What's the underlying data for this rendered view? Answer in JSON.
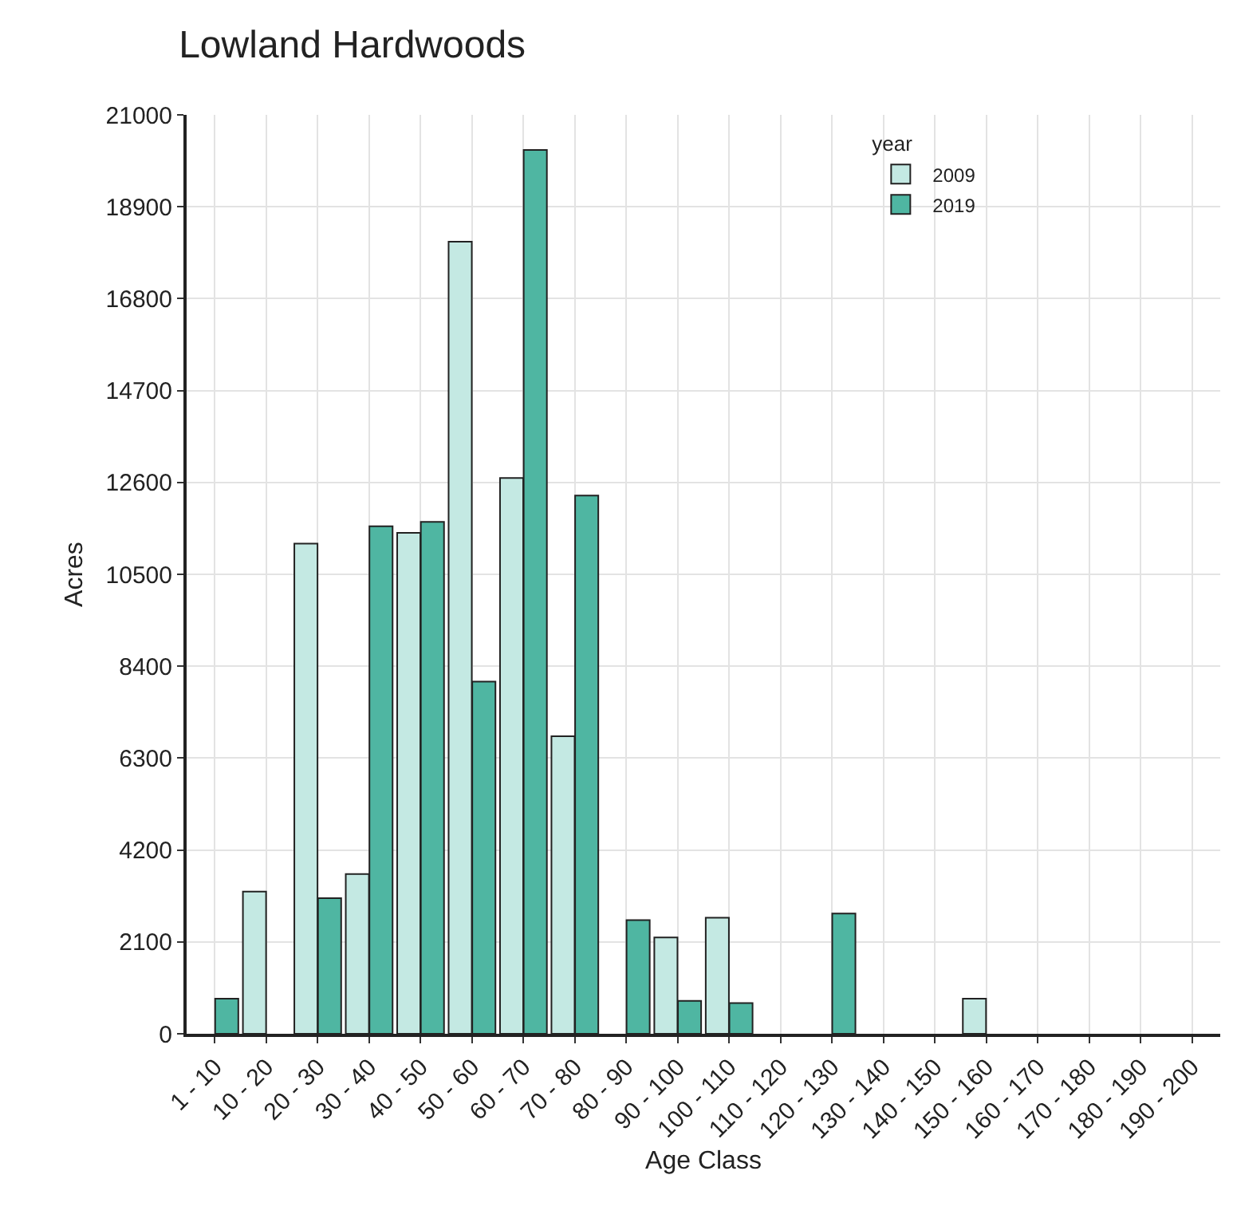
{
  "chart_data": {
    "type": "bar",
    "title": "Lowland Hardwoods",
    "xlabel": "Age Class",
    "ylabel": "Acres",
    "legend_title": "year",
    "categories": [
      "1 - 10",
      "10 - 20",
      "20 - 30",
      "30 - 40",
      "40 - 50",
      "50 - 60",
      "60 - 70",
      "70 - 80",
      "80 - 90",
      "90 - 100",
      "100 - 110",
      "110 - 120",
      "120 - 130",
      "130 - 140",
      "140 - 150",
      "150 - 160",
      "160 - 170",
      "170 - 180",
      "180 - 190",
      "190 - 200"
    ],
    "series": [
      {
        "name": "2009",
        "color": "#c4e9e3",
        "values": [
          null,
          3250,
          11200,
          3650,
          11450,
          18100,
          12700,
          6800,
          null,
          2200,
          2650,
          null,
          null,
          null,
          null,
          800,
          null,
          null,
          null,
          null
        ]
      },
      {
        "name": "2019",
        "color": "#4fb6a2",
        "values": [
          800,
          null,
          3100,
          11600,
          11700,
          8050,
          20200,
          12300,
          2600,
          750,
          700,
          null,
          2750,
          null,
          null,
          null,
          null,
          null,
          null,
          null
        ]
      }
    ],
    "ylim": [
      0,
      21000
    ],
    "yticks": [
      0,
      2100,
      4200,
      6300,
      8400,
      10500,
      12600,
      14700,
      16800,
      18900,
      21000
    ],
    "grid": true,
    "legend": "top right"
  }
}
